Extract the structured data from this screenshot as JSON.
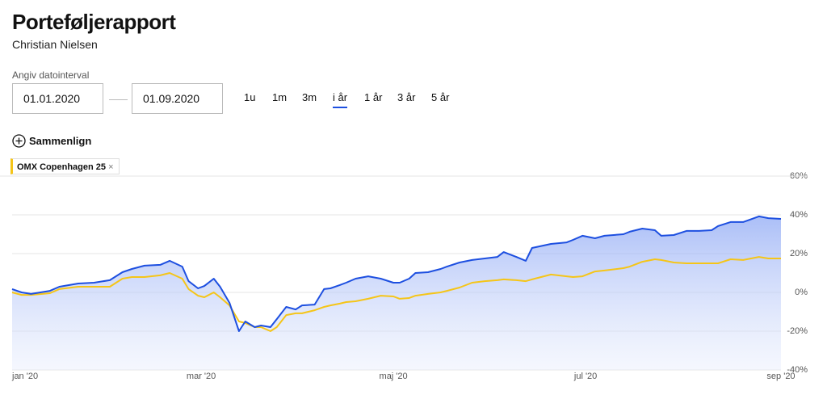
{
  "header": {
    "title": "Porteføljerapport",
    "subtitle": "Christian Nielsen"
  },
  "date_range": {
    "label": "Angiv datointerval",
    "from": "01.01.2020",
    "to": "01.09.2020"
  },
  "periods": {
    "options": [
      "1u",
      "1m",
      "3m",
      "i år",
      "1 år",
      "3 år",
      "5 år"
    ],
    "selected": 3
  },
  "compare": {
    "label": "Sammenlign"
  },
  "chart_data": {
    "type": "line",
    "x": [
      0,
      3,
      6,
      12,
      15,
      21,
      26,
      31,
      35,
      38,
      42,
      47,
      50,
      54,
      56,
      59,
      61,
      64,
      66,
      69,
      72,
      74,
      77,
      79,
      82,
      84,
      87,
      90,
      92,
      96,
      99,
      101,
      104,
      106,
      109,
      113,
      117,
      121,
      123,
      126,
      128,
      132,
      136,
      138,
      142,
      146,
      150,
      154,
      156,
      160,
      163,
      165,
      171,
      176,
      178,
      181,
      185,
      188,
      194,
      196,
      200,
      204,
      206,
      210,
      214,
      218,
      222,
      224,
      228,
      232,
      237,
      240,
      244
    ],
    "xlim": [
      0,
      244
    ],
    "xticks": [
      {
        "value": 0,
        "label": "jan '20"
      },
      {
        "value": 60,
        "label": "mar '20"
      },
      {
        "value": 121,
        "label": "maj '20"
      },
      {
        "value": 182,
        "label": "jul '20"
      },
      {
        "value": 244,
        "label": "sep '20"
      }
    ],
    "ylim": [
      -40,
      60
    ],
    "yticks": [
      {
        "value": -40,
        "label": "-40%"
      },
      {
        "value": -20,
        "label": "-20%"
      },
      {
        "value": 0,
        "label": "0%"
      },
      {
        "value": 20,
        "label": "20%"
      },
      {
        "value": 40,
        "label": "40%"
      },
      {
        "value": 60,
        "label": "60%"
      }
    ],
    "grid": true,
    "series": [
      {
        "color": "#1d4fe0",
        "area": true,
        "values": [
          1.7,
          0,
          -0.8,
          0.8,
          2.9,
          4.6,
          5,
          6.3,
          10.4,
          12.1,
          13.8,
          14.2,
          16.3,
          13.3,
          5.8,
          2.1,
          3.3,
          7.1,
          2.9,
          -5.4,
          -20,
          -15,
          -17.9,
          -17.1,
          -17.9,
          -13.8,
          -7.5,
          -8.8,
          -6.7,
          -6.3,
          1.7,
          2.1,
          3.8,
          5,
          7.1,
          8.3,
          7.1,
          5,
          5,
          7.1,
          10,
          10.4,
          12.1,
          13.3,
          15.4,
          16.7,
          17.5,
          18.3,
          20.8,
          18.3,
          16.3,
          22.9,
          25,
          25.8,
          27.1,
          29.2,
          27.9,
          29.2,
          30,
          31.3,
          32.9,
          32.1,
          29.2,
          29.6,
          31.7,
          31.7,
          32.1,
          34.2,
          36.3,
          36.3,
          39.2,
          38.3,
          37.9
        ]
      },
      {
        "name": "OMX Copenhagen 25",
        "color": "#f5c518",
        "area": false,
        "values": [
          0,
          -1.3,
          -1.3,
          -0.4,
          1.7,
          2.9,
          2.9,
          2.9,
          7.1,
          7.9,
          7.9,
          8.8,
          10,
          7.1,
          1.7,
          -1.7,
          -2.5,
          0,
          -2.5,
          -6.7,
          -15,
          -15.8,
          -17.9,
          -17.9,
          -20,
          -17.9,
          -11.7,
          -10.8,
          -10.8,
          -9.2,
          -7.5,
          -6.7,
          -5.8,
          -5,
          -4.6,
          -3.3,
          -1.7,
          -2.1,
          -3.3,
          -2.9,
          -1.7,
          -0.8,
          0,
          0.8,
          2.5,
          5,
          5.8,
          6.3,
          6.7,
          6.3,
          5.8,
          6.7,
          9.2,
          8.3,
          7.9,
          8.3,
          10.8,
          11.3,
          12.5,
          13.3,
          15.8,
          17.1,
          16.7,
          15.4,
          15,
          15,
          15,
          15,
          17.1,
          16.7,
          18.3,
          17.5,
          17.5
        ]
      }
    ]
  }
}
